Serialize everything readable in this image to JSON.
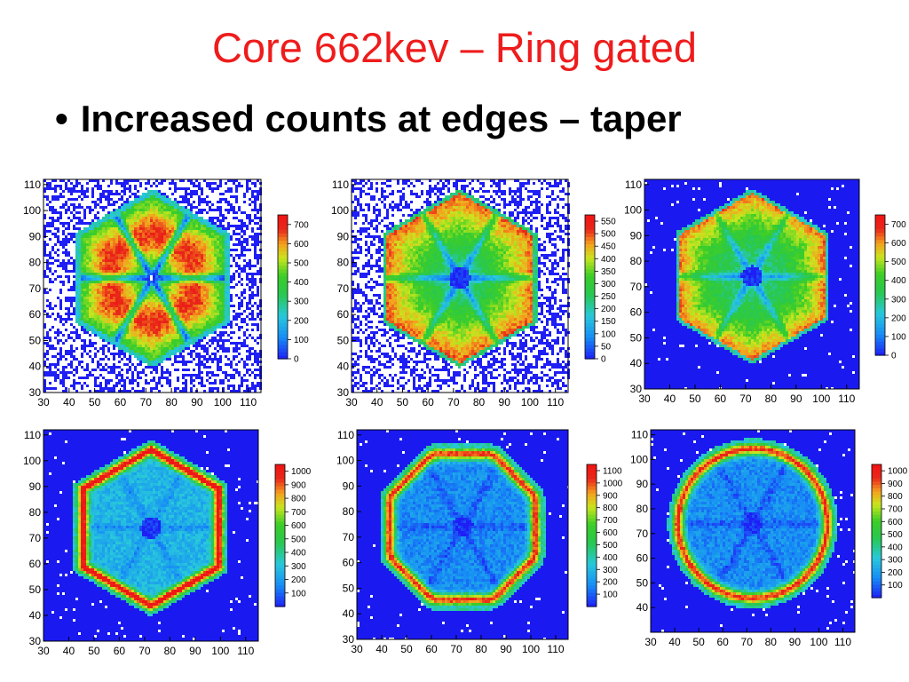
{
  "slide": {
    "title": "Core 662kev – Ring gated",
    "bullet_symbol": "•",
    "bullet": "Increased counts at edges – taper"
  },
  "colors": {
    "title": "#ee1c1c",
    "scale": [
      "#ffffff",
      "#1e1ef5",
      "#16a9f3",
      "#4ad58a",
      "#20c53a",
      "#b6ea1a",
      "#f9dd18",
      "#f7861a",
      "#e8141a",
      "#f7f21e"
    ]
  },
  "chart_data": [
    {
      "type": "heatmap",
      "title": "",
      "xlabel": "",
      "ylabel": "",
      "xlim": [
        30,
        115
      ],
      "ylim": [
        30,
        112
      ],
      "xticks": [
        30,
        40,
        50,
        60,
        70,
        80,
        90,
        100,
        110
      ],
      "yticks": [
        30,
        40,
        50,
        60,
        70,
        80,
        90,
        100,
        110
      ],
      "colorbar_ticks": [
        0,
        100,
        200,
        300,
        400,
        500,
        600,
        700
      ],
      "pattern": "hexagon with six petal-shaped high-count lobes meeting at centre; noisy white background",
      "z_range": [
        0,
        750
      ]
    },
    {
      "type": "heatmap",
      "title": "",
      "xlabel": "",
      "ylabel": "",
      "xlim": [
        30,
        115
      ],
      "ylim": [
        30,
        112
      ],
      "xticks": [
        30,
        40,
        50,
        60,
        70,
        80,
        90,
        100,
        110
      ],
      "yticks": [
        30,
        40,
        50,
        60,
        70,
        80,
        90,
        100,
        110
      ],
      "colorbar_ticks": [
        0,
        50,
        100,
        150,
        200,
        250,
        300,
        350,
        400,
        450,
        500,
        550
      ],
      "pattern": "hexagon, six high-count sectors toward edges, low-count central hole and spokes",
      "z_range": [
        0,
        575
      ]
    },
    {
      "type": "heatmap",
      "title": "",
      "xlabel": "",
      "ylabel": "",
      "xlim": [
        30,
        115
      ],
      "ylim": [
        30,
        112
      ],
      "xticks": [
        30,
        40,
        50,
        60,
        70,
        80,
        90,
        100,
        110
      ],
      "yticks": [
        30,
        40,
        50,
        60,
        70,
        80,
        90,
        100,
        110
      ],
      "colorbar_ticks": [
        0,
        100,
        200,
        300,
        400,
        500,
        600,
        700
      ],
      "pattern": "hexagon, counts concentrated toward edges, central hole and six spokes",
      "z_range": [
        0,
        750
      ]
    },
    {
      "type": "heatmap",
      "title": "",
      "xlabel": "",
      "ylabel": "",
      "xlim": [
        30,
        115
      ],
      "ylim": [
        30,
        112
      ],
      "xticks": [
        30,
        40,
        50,
        60,
        70,
        80,
        90,
        100,
        110
      ],
      "yticks": [
        30,
        40,
        50,
        60,
        70,
        80,
        90,
        100,
        110
      ],
      "colorbar_ticks": [
        100,
        200,
        300,
        400,
        500,
        600,
        700,
        800,
        900,
        1000
      ],
      "pattern": "hexagon, high counts along the six edges, low interior with central hole and spokes",
      "z_range": [
        0,
        1050
      ]
    },
    {
      "type": "heatmap",
      "title": "",
      "xlabel": "",
      "ylabel": "",
      "xlim": [
        30,
        115
      ],
      "ylim": [
        30,
        112
      ],
      "xticks": [
        30,
        40,
        50,
        60,
        70,
        80,
        90,
        100,
        110
      ],
      "yticks": [
        30,
        40,
        50,
        60,
        70,
        80,
        90,
        100,
        110
      ],
      "colorbar_ticks": [
        100,
        200,
        300,
        400,
        500,
        600,
        700,
        800,
        900,
        1000,
        1100
      ],
      "pattern": "tapered octagon/circle shape, high-count segments around the rim, low interior",
      "z_range": [
        0,
        1150
      ]
    },
    {
      "type": "heatmap",
      "title": "",
      "xlabel": "",
      "ylabel": "",
      "xlim": [
        30,
        115
      ],
      "ylim": [
        30,
        112
      ],
      "xticks": [
        30,
        40,
        50,
        60,
        70,
        80,
        90,
        100,
        110
      ],
      "yticks": [
        40,
        50,
        60,
        70,
        80,
        90,
        100,
        110
      ],
      "colorbar_ticks": [
        100,
        200,
        300,
        400,
        500,
        600,
        700,
        800,
        900,
        1000
      ],
      "pattern": "circle, high-count segments around the rim, low interior",
      "z_range": [
        0,
        1050
      ]
    }
  ]
}
